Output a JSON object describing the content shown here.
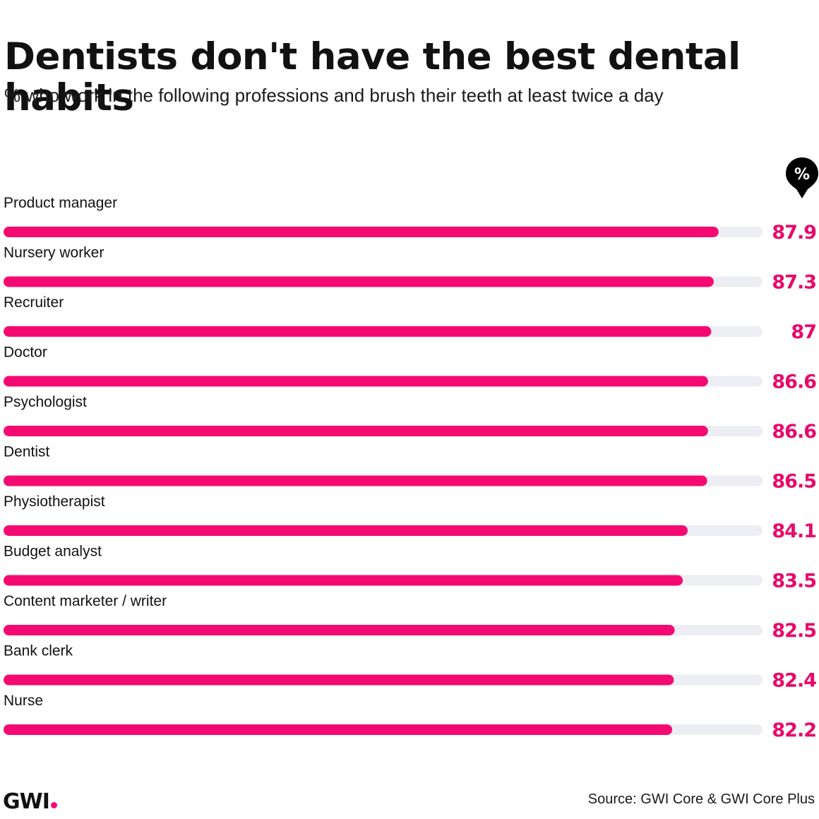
{
  "header": {
    "title": "Dentists don't have the best dental habits",
    "subtitle": "% who work in the following professions and brush their teeth at least twice a day",
    "unit_marker": "%"
  },
  "footer": {
    "logo_text": "GWI",
    "source": "Source: GWI Core & GWI Core Plus"
  },
  "colors": {
    "bar": "#f50a72",
    "track": "#eceef3",
    "value_text": "#e8096a",
    "marker_bg": "#000000"
  },
  "chart_data": {
    "type": "bar",
    "orientation": "horizontal",
    "categories": [
      "Product manager",
      "Nursery worker",
      "Recruiter",
      "Doctor",
      "Psychologist",
      "Dentist",
      "Physiotherapist",
      "Budget analyst",
      "Content marketer / writer",
      "Bank clerk",
      "Nurse"
    ],
    "values": [
      87.9,
      87.3,
      87,
      86.6,
      86.6,
      86.5,
      84.1,
      83.5,
      82.5,
      82.4,
      82.2
    ],
    "value_labels": [
      "87.9",
      "87.3",
      "87",
      "86.6",
      "86.6",
      "86.5",
      "84.1",
      "83.5",
      "82.5",
      "82.4",
      "82.2"
    ],
    "xlim": [
      0,
      100
    ],
    "grid": false,
    "legend": "none"
  }
}
